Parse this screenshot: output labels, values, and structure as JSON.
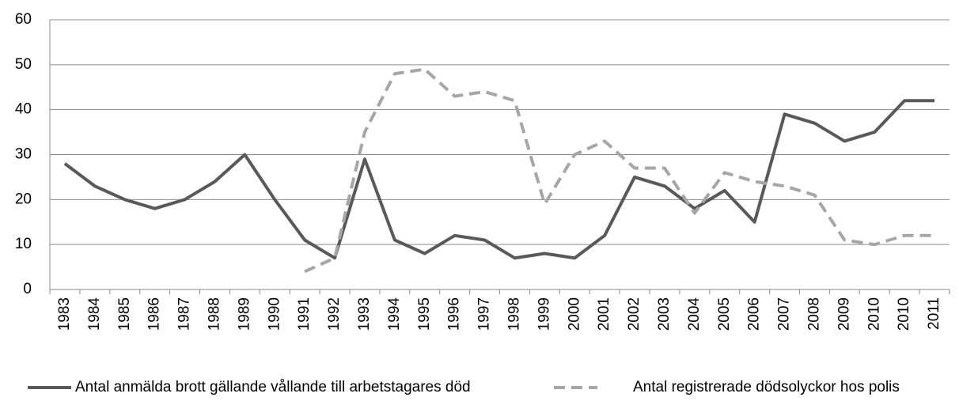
{
  "chart_data": {
    "type": "line",
    "categories": [
      "1983",
      "1984",
      "1985",
      "1986",
      "1987",
      "1988",
      "1989",
      "1990",
      "1991",
      "1992",
      "1993",
      "1994",
      "1995",
      "1996",
      "1997",
      "1998",
      "1999",
      "2000",
      "2001",
      "2002",
      "2003",
      "2004",
      "2005",
      "2006",
      "2007",
      "2008",
      "2009",
      "2010",
      "2010",
      "2011"
    ],
    "series": [
      {
        "name": "Antal anmälda brott gällande vållande till arbetstagares död",
        "color": "#595959",
        "dash": false,
        "values": [
          28,
          23,
          20,
          18,
          20,
          24,
          30,
          20,
          11,
          7,
          29,
          11,
          8,
          12,
          11,
          7,
          8,
          7,
          12,
          25,
          23,
          18,
          22,
          15,
          39,
          37,
          33,
          35,
          42,
          42
        ]
      },
      {
        "name": "Antal registrerade dödsolyckor hos polis",
        "color": "#a6a6a6",
        "dash": true,
        "values": [
          null,
          null,
          null,
          null,
          null,
          null,
          null,
          null,
          4,
          7,
          35,
          48,
          49,
          43,
          44,
          42,
          19,
          30,
          33,
          27,
          27,
          17,
          26,
          24,
          23,
          21,
          11,
          10,
          12,
          12
        ]
      }
    ],
    "ylim": [
      0,
      60
    ],
    "yticks": [
      0,
      10,
      20,
      30,
      40,
      50,
      60
    ],
    "grid": true,
    "legend": "bottom"
  }
}
